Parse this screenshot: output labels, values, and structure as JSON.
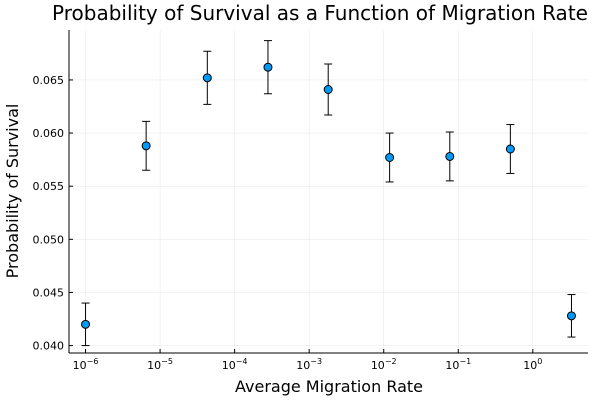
{
  "chart_data": {
    "type": "scatter",
    "title": "Probability of Survival as a Function of Migration Rate",
    "xlabel": "Average Migration Rate",
    "ylabel": "Probability of Survival",
    "x_scale": "log10",
    "xlim": [
      6e-07,
      5.5
    ],
    "ylim": [
      0.0393,
      0.0697
    ],
    "grid": true,
    "legend": "none",
    "marker_color": "#009af9",
    "x_ticks": [
      {
        "value": 1e-06,
        "base": "10",
        "exp": "−6"
      },
      {
        "value": 1e-05,
        "base": "10",
        "exp": "−5"
      },
      {
        "value": 0.0001,
        "base": "10",
        "exp": "−4"
      },
      {
        "value": 0.001,
        "base": "10",
        "exp": "−3"
      },
      {
        "value": 0.01,
        "base": "10",
        "exp": "−2"
      },
      {
        "value": 0.1,
        "base": "10",
        "exp": "−1"
      },
      {
        "value": 1,
        "base": "10",
        "exp": "0"
      }
    ],
    "y_ticks": [
      {
        "value": 0.04,
        "label": "0.040"
      },
      {
        "value": 0.045,
        "label": "0.045"
      },
      {
        "value": 0.05,
        "label": "0.050"
      },
      {
        "value": 0.055,
        "label": "0.055"
      },
      {
        "value": 0.06,
        "label": "0.060"
      },
      {
        "value": 0.065,
        "label": "0.065"
      }
    ],
    "points": [
      {
        "x": 1e-06,
        "y": 0.042,
        "ylow": 0.04,
        "yhigh": 0.044
      },
      {
        "x": 6.5e-06,
        "y": 0.0588,
        "ylow": 0.0565,
        "yhigh": 0.0611
      },
      {
        "x": 4.3e-05,
        "y": 0.0652,
        "ylow": 0.0627,
        "yhigh": 0.0677
      },
      {
        "x": 0.00028,
        "y": 0.0662,
        "ylow": 0.0637,
        "yhigh": 0.0687
      },
      {
        "x": 0.0018,
        "y": 0.0641,
        "ylow": 0.0617,
        "yhigh": 0.0665
      },
      {
        "x": 0.012,
        "y": 0.0577,
        "ylow": 0.0554,
        "yhigh": 0.06
      },
      {
        "x": 0.077,
        "y": 0.0578,
        "ylow": 0.0555,
        "yhigh": 0.0601
      },
      {
        "x": 0.5,
        "y": 0.0585,
        "ylow": 0.0562,
        "yhigh": 0.0608
      },
      {
        "x": 3.3,
        "y": 0.0428,
        "ylow": 0.0408,
        "yhigh": 0.0448
      }
    ]
  }
}
